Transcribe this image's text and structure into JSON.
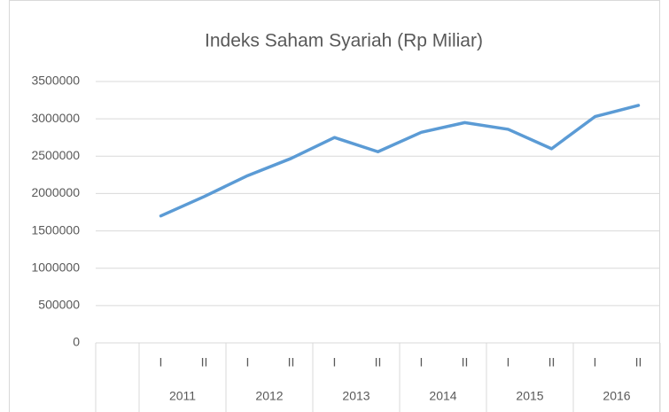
{
  "chart_data": {
    "type": "line",
    "title": "Indeks Saham Syariah (Rp Miliar)",
    "categories": [
      null,
      "I",
      "II",
      "I",
      "II",
      "I",
      "II",
      "I",
      "II",
      "I",
      "II",
      "I",
      "II"
    ],
    "groups": [
      "2011",
      "2012",
      "2013",
      "2014",
      "2015",
      "2016"
    ],
    "series": [
      {
        "name": "Indeks Saham Syariah",
        "color": "#5b9bd5",
        "values": [
          null,
          1700000,
          1960000,
          2240000,
          2470000,
          2750000,
          2560000,
          2820000,
          2950000,
          2860000,
          2600000,
          3030000,
          3180000
        ]
      }
    ],
    "ylim": [
      0,
      3500000
    ],
    "yticks": [
      0,
      500000,
      1000000,
      1500000,
      2000000,
      2500000,
      3000000,
      3500000
    ],
    "grid": true
  }
}
